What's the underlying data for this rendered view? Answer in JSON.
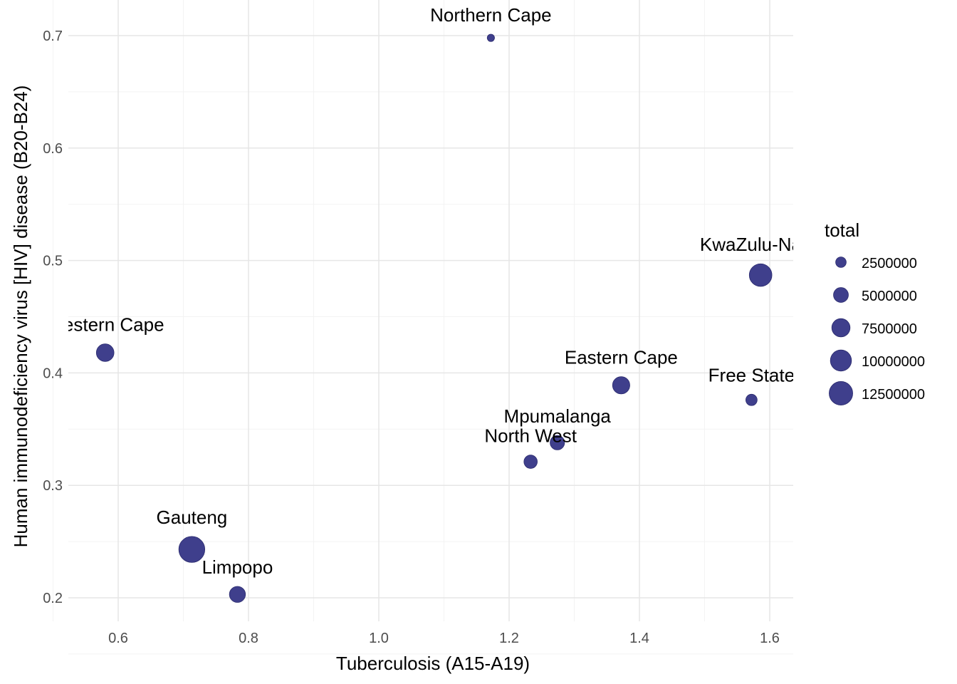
{
  "chart_data": {
    "type": "scatter",
    "xlabel": "Tuberculosis (A15-A19)",
    "ylabel": "Human immunodeficiency virus [HIV] disease (B20-B24)",
    "xlim": [
      0.53,
      1.64
    ],
    "ylim": [
      0.17,
      0.725
    ],
    "x_ticks": [
      "0.6",
      "0.8",
      "1.0",
      "1.2",
      "1.4",
      "1.6"
    ],
    "y_ticks": [
      "0.2",
      "0.3",
      "0.4",
      "0.5",
      "0.6",
      "0.7"
    ],
    "grid": true,
    "point_color": "#3f3f8c",
    "size_legend": {
      "title": "total",
      "placement": "right",
      "entries": [
        {
          "label": "2500000",
          "value": 2500000
        },
        {
          "label": "5000000",
          "value": 5000000
        },
        {
          "label": "7500000",
          "value": 7500000
        },
        {
          "label": "10000000",
          "value": 10000000
        },
        {
          "label": "12500000",
          "value": 12500000
        }
      ]
    },
    "points": [
      {
        "label": "Northern Cape",
        "x": 1.172,
        "y": 0.698,
        "total": 1200000
      },
      {
        "label": "KwaZulu-Natal",
        "x": 1.586,
        "y": 0.487,
        "total": 11500000
      },
      {
        "label": "Western Cape",
        "x": 0.58,
        "y": 0.418,
        "total": 7000000
      },
      {
        "label": "Eastern Cape",
        "x": 1.372,
        "y": 0.389,
        "total": 6700000
      },
      {
        "label": "Free State",
        "x": 1.572,
        "y": 0.376,
        "total": 2900000
      },
      {
        "label": "Mpumalanga",
        "x": 1.274,
        "y": 0.338,
        "total": 4700000
      },
      {
        "label": "North West",
        "x": 1.233,
        "y": 0.321,
        "total": 4000000
      },
      {
        "label": "Gauteng",
        "x": 0.713,
        "y": 0.243,
        "total": 15200000
      },
      {
        "label": "Limpopo",
        "x": 0.783,
        "y": 0.203,
        "total": 5800000
      }
    ]
  }
}
